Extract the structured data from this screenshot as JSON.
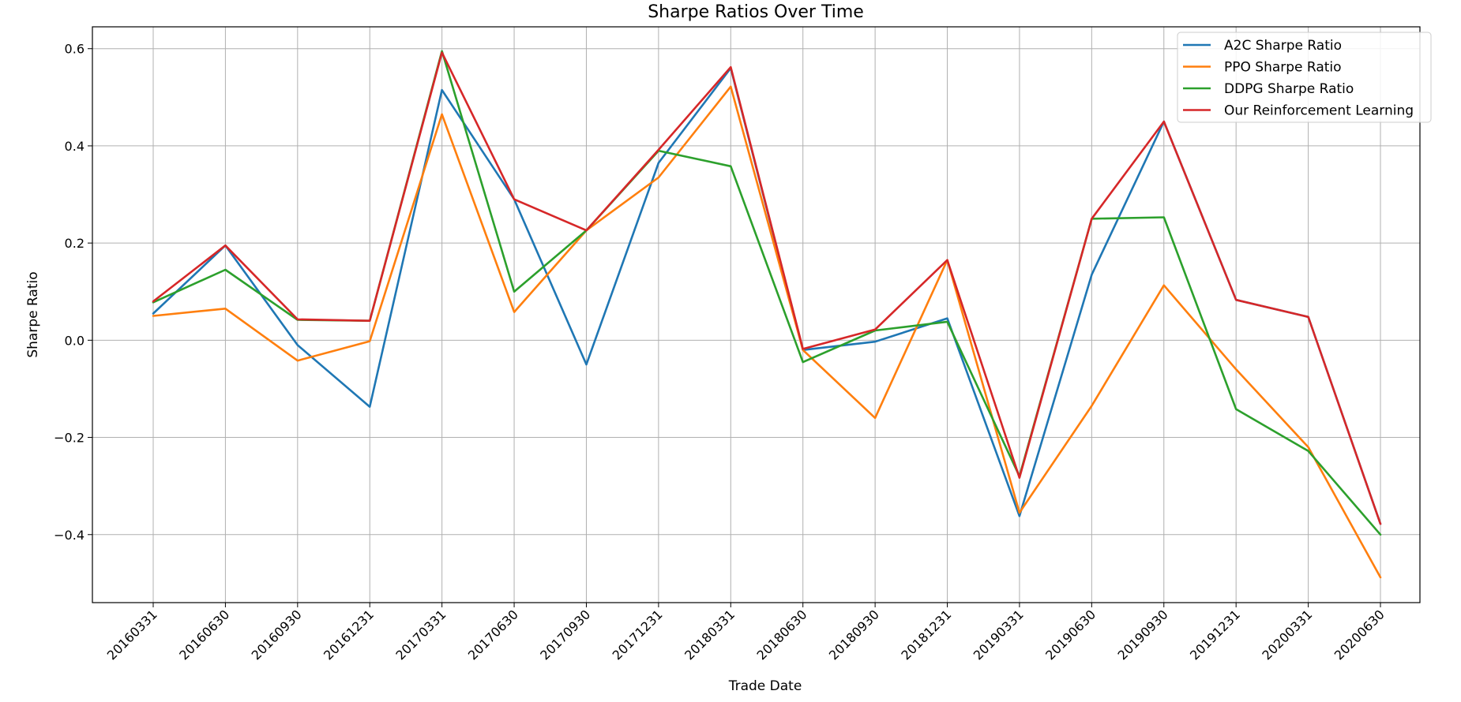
{
  "chart_data": {
    "type": "line",
    "title": "Sharpe Ratios Over Time",
    "xlabel": "Trade Date",
    "ylabel": "Sharpe Ratio",
    "x": [
      "20160331",
      "20160630",
      "20160930",
      "20161231",
      "20170331",
      "20170630",
      "20170930",
      "20171231",
      "20180331",
      "20180630",
      "20180930",
      "20181231",
      "20190331",
      "20190630",
      "20190930",
      "20191231",
      "20200331",
      "20200630"
    ],
    "ylim": [
      -0.54,
      0.645
    ],
    "yticks": [
      -0.4,
      -0.2,
      0.0,
      0.2,
      0.4,
      0.6
    ],
    "ytick_labels": [
      "−0.4",
      "−0.2",
      "0.0",
      "0.2",
      "0.4",
      "0.6"
    ],
    "grid": true,
    "legend_position": "top-right",
    "series": [
      {
        "name": "A2C Sharpe Ratio",
        "color": "#1f77b4",
        "values": [
          0.055,
          0.195,
          -0.01,
          -0.137,
          0.515,
          0.29,
          -0.05,
          0.365,
          0.56,
          -0.02,
          -0.003,
          0.045,
          -0.362,
          0.135,
          0.45,
          0.083,
          0.048,
          -0.378
        ]
      },
      {
        "name": "PPO Sharpe Ratio",
        "color": "#ff7f0e",
        "values": [
          0.05,
          0.065,
          -0.042,
          -0.002,
          0.465,
          0.058,
          0.226,
          0.335,
          0.522,
          -0.02,
          -0.16,
          0.165,
          -0.355,
          -0.135,
          0.113,
          -0.06,
          -0.22,
          -0.488
        ]
      },
      {
        "name": "DDPG Sharpe Ratio",
        "color": "#2ca02c",
        "values": [
          0.078,
          0.145,
          0.042,
          0.04,
          0.595,
          0.1,
          0.226,
          0.39,
          0.358,
          -0.045,
          0.02,
          0.038,
          -0.28,
          0.25,
          0.253,
          -0.142,
          -0.228,
          -0.4
        ]
      },
      {
        "name": "Our Reinforcement Learning",
        "color": "#d62728",
        "values": [
          0.08,
          0.195,
          0.043,
          0.04,
          0.592,
          0.29,
          0.226,
          0.392,
          0.562,
          -0.018,
          0.022,
          0.165,
          -0.283,
          0.25,
          0.45,
          0.083,
          0.048,
          -0.378
        ]
      }
    ]
  }
}
